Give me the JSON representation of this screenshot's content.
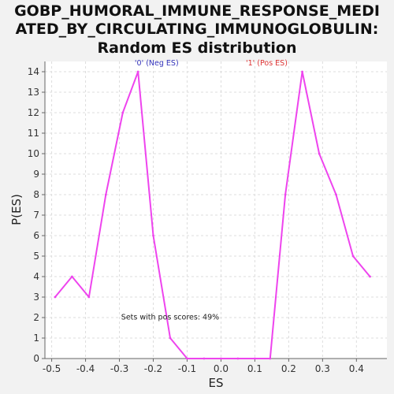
{
  "chart_data": {
    "type": "line",
    "title": "GOBP_HUMORAL_IMMUNE_RESPONSE_MEDIATED_BY_CIRCULATING_IMMUNOGLOBULIN: Random ES distribution",
    "title_lines": [
      "GOBP_HUMORAL_IMMUNE_RESPONSE_MEDI",
      "ATED_BY_CIRCULATING_IMMUNOGLOBULIN:",
      "Random ES distribution"
    ],
    "xlabel": "ES",
    "ylabel": "P(ES)",
    "xlim": [
      -0.52,
      0.49
    ],
    "ylim": [
      0,
      14.5
    ],
    "x_ticks": [
      -0.5,
      -0.4,
      -0.3,
      -0.2,
      -0.1,
      0.0,
      0.1,
      0.2,
      0.3,
      0.4
    ],
    "x_tick_labels": [
      "-0.5",
      "-0.4",
      "-0.3",
      "-0.2",
      "-0.1",
      "0.0",
      "0.1",
      "0.2",
      "0.3",
      "0.4"
    ],
    "y_ticks": [
      0,
      1,
      2,
      3,
      4,
      5,
      6,
      7,
      8,
      9,
      10,
      11,
      12,
      13,
      14
    ],
    "y_tick_labels": [
      "0",
      "1",
      "2",
      "3",
      "4",
      "5",
      "6",
      "7",
      "8",
      "9",
      "10",
      "11",
      "12",
      "13",
      "14"
    ],
    "grid": true,
    "series": [
      {
        "color": "#ee44ee",
        "x": [
          -0.49,
          -0.44,
          -0.39,
          -0.34,
          -0.29,
          -0.245,
          -0.2,
          -0.15,
          -0.1,
          -0.05,
          0.0,
          0.05,
          0.1,
          0.145,
          0.19,
          0.24,
          0.29,
          0.34,
          0.39,
          0.44
        ],
        "y": [
          3,
          4,
          3,
          8,
          12,
          14,
          6,
          1,
          0,
          0,
          0,
          0,
          0,
          0,
          8,
          14,
          10,
          8,
          5,
          4
        ]
      }
    ],
    "annotations": [
      {
        "text": "'0' (Neg ES)",
        "x": -0.19,
        "y": 14.3,
        "color": "#3333bb"
      },
      {
        "text": "'1' (Pos ES)",
        "x": 0.135,
        "y": 14.3,
        "color": "#dd3333"
      },
      {
        "text": "Sets with pos scores: 49%",
        "x": -0.15,
        "y": 1.9,
        "color": "#222222"
      }
    ],
    "colors": {
      "background": "#f2f2f2",
      "plot_background": "#ffffff",
      "axis": "#666666",
      "grid": "#dddddd",
      "line": "#ee44ee"
    }
  }
}
